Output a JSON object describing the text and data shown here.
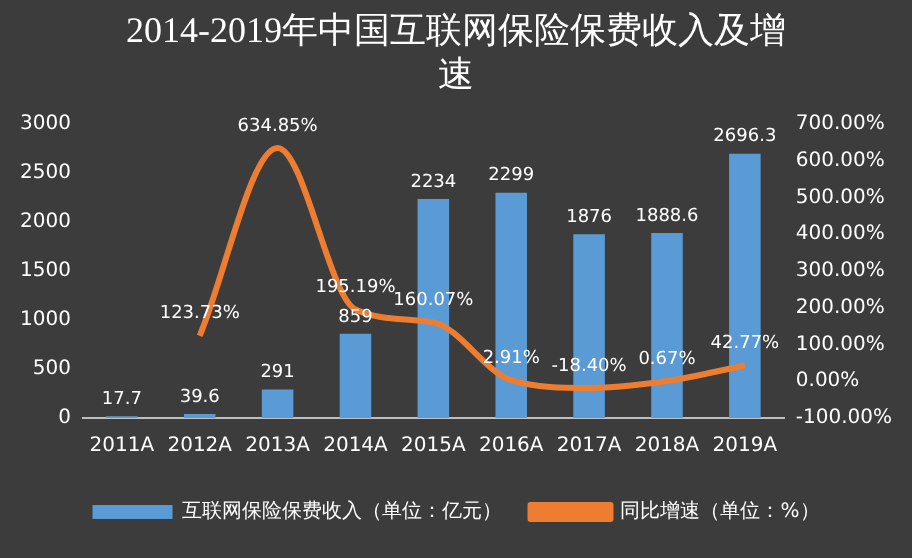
{
  "chart_data": {
    "type": "bar",
    "title": "2014-2019年中国互联网保险保费收入及增速",
    "categories": [
      "2011A",
      "2012A",
      "2013A",
      "2014A",
      "2015A",
      "2016A",
      "2017A",
      "2018A",
      "2019A"
    ],
    "series": [
      {
        "name": "互联网保险保费收入（单位：亿元）",
        "color": "#5b9bd5",
        "values": [
          17.7,
          39.6,
          291,
          859,
          2234,
          2299,
          1876,
          1888.6,
          2696.3
        ],
        "value_labels": [
          "17.7",
          "39.6",
          "291",
          "859",
          "2234",
          "2299",
          "1876",
          "1888.6",
          "2696.3"
        ]
      },
      {
        "name": "同比增速（单位：%）",
        "type": "line",
        "axis": "y2",
        "color": "#ed7d31",
        "marker": "none",
        "values": [
          null,
          123.73,
          634.85,
          195.19,
          160.07,
          2.91,
          -18.4,
          0.67,
          42.77
        ],
        "value_labels": [
          null,
          "123.73%",
          "634.85%",
          "195.19%",
          "160.07%",
          "2.91%",
          "-18.40%",
          "0.67%",
          "42.77%"
        ]
      }
    ],
    "ylim": [
      0,
      3000
    ],
    "yticks": [
      0,
      500,
      1000,
      1500,
      2000,
      2500,
      3000
    ],
    "y2lim": [
      -100,
      700
    ],
    "y2ticks": [
      {
        "value": -100,
        "label": "-100.00%"
      },
      {
        "value": 0,
        "label": "0.00%"
      },
      {
        "value": 100,
        "label": "100.00%"
      },
      {
        "value": 200,
        "label": "200.00%"
      },
      {
        "value": 300,
        "label": "300.00%"
      },
      {
        "value": 400,
        "label": "400.00%"
      },
      {
        "value": 500,
        "label": "500.00%"
      },
      {
        "value": 600,
        "label": "600.00%"
      },
      {
        "value": 700,
        "label": "700.00%"
      }
    ],
    "grid": false,
    "legend": "bottom"
  }
}
